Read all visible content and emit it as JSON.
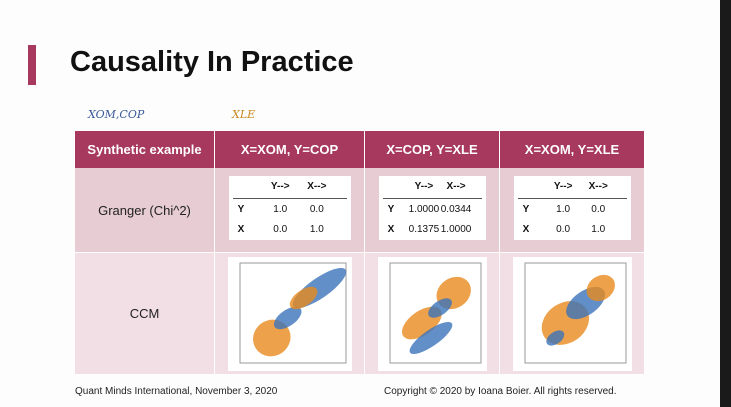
{
  "header": {
    "title": "Causality In Practice",
    "labels": [
      "XOM,COP",
      "XLE"
    ]
  },
  "table": {
    "columns": [
      "Synthetic example",
      "X=XOM, Y=COP",
      "X=COP, Y=XLE",
      "X=XOM, Y=XLE"
    ],
    "rows": [
      {
        "label": "Granger (Chi^2)",
        "matrices": [
          {
            "columns": [
              "Y-->",
              "X-->"
            ],
            "rows": [
              {
                "label": "Y",
                "values": [
                  "1.0",
                  "0.0"
                ]
              },
              {
                "label": "X",
                "values": [
                  "0.0",
                  "1.0"
                ]
              }
            ]
          },
          {
            "columns": [
              "Y-->",
              "X-->"
            ],
            "rows": [
              {
                "label": "Y",
                "values": [
                  "1.0000",
                  "0.0344"
                ]
              },
              {
                "label": "X",
                "values": [
                  "0.1375",
                  "1.0000"
                ]
              }
            ]
          },
          {
            "columns": [
              "Y-->",
              "X-->"
            ],
            "rows": [
              {
                "label": "Y",
                "values": [
                  "1.0",
                  "0.0"
                ]
              },
              {
                "label": "X",
                "values": [
                  "0.0",
                  "1.0"
                ]
              }
            ]
          }
        ]
      },
      {
        "label": "CCM"
      }
    ]
  },
  "footer": {
    "left": "Quant Minds International, November 3, 2020",
    "right": "Copyright © 2020 by Ioana Boier. All rights reserved."
  }
}
